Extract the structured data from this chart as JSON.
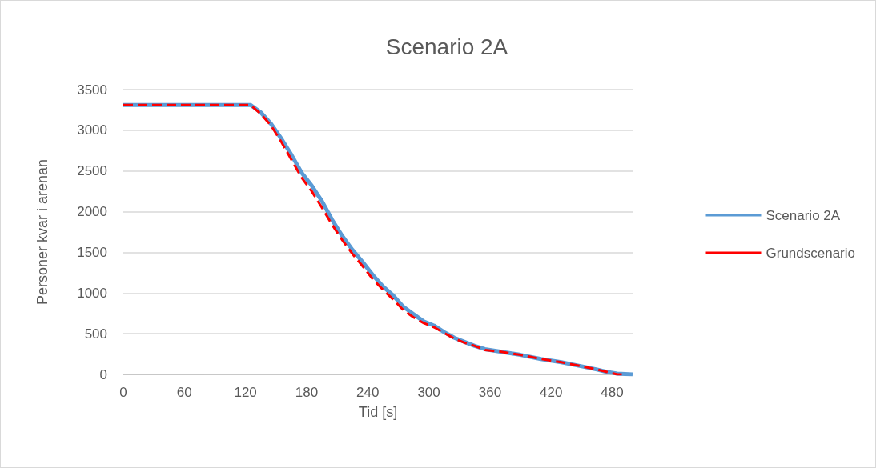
{
  "chart_data": {
    "type": "line",
    "title": "Scenario 2A",
    "xlabel": "Tid [s]",
    "ylabel": "Personer kvar i arenan",
    "xlim": [
      0,
      500
    ],
    "xticks": [
      0,
      60,
      120,
      180,
      240,
      300,
      360,
      420,
      480
    ],
    "ylim": [
      0,
      3500
    ],
    "yticks": [
      0,
      500,
      1000,
      1500,
      2000,
      2500,
      3000,
      3500
    ],
    "grid": "y",
    "legend": "right",
    "marker": "none",
    "series": [
      {
        "name": "Scenario 2A",
        "color": "#5b9bd5",
        "line_style": "solid",
        "x": [
          0,
          125,
          135,
          145,
          155,
          165,
          175,
          185,
          195,
          205,
          215,
          225,
          235,
          245,
          255,
          265,
          275,
          285,
          295,
          305,
          315,
          325,
          335,
          345,
          355,
          370,
          390,
          410,
          430,
          450,
          465,
          475,
          485,
          500
        ],
        "values": [
          3310,
          3310,
          3220,
          3080,
          2900,
          2700,
          2480,
          2320,
          2130,
          1900,
          1700,
          1530,
          1380,
          1220,
          1080,
          970,
          830,
          740,
          650,
          600,
          520,
          450,
          400,
          350,
          310,
          280,
          240,
          190,
          150,
          100,
          60,
          30,
          10,
          0
        ]
      },
      {
        "name": "Grundscenario",
        "color": "#ff0000",
        "line_style": "dashed",
        "x": [
          0,
          125,
          135,
          145,
          155,
          165,
          175,
          185,
          195,
          205,
          215,
          225,
          235,
          245,
          255,
          265,
          275,
          285,
          295,
          305,
          315,
          325,
          335,
          345,
          355,
          370,
          390,
          410,
          430,
          450,
          465,
          475,
          485,
          492
        ],
        "values": [
          3310,
          3310,
          3200,
          3060,
          2860,
          2640,
          2420,
          2250,
          2050,
          1840,
          1650,
          1480,
          1330,
          1170,
          1040,
          920,
          790,
          700,
          630,
          580,
          510,
          440,
          390,
          350,
          300,
          280,
          240,
          190,
          150,
          100,
          60,
          30,
          0,
          0
        ]
      }
    ]
  }
}
